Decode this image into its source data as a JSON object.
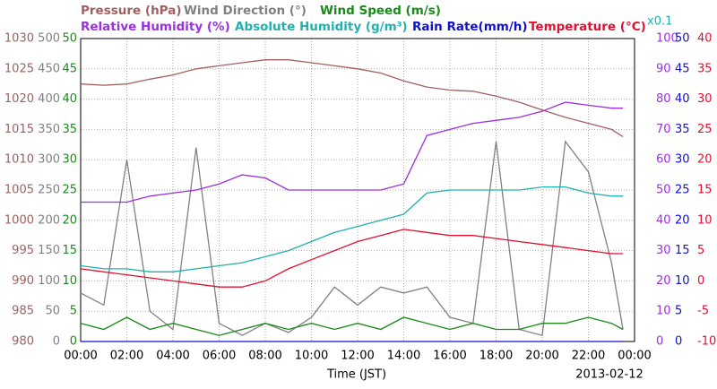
{
  "chart_data": {
    "type": "line",
    "x_label": "Time (JST)",
    "date": "2013-02-12",
    "scale_note": "x0.1",
    "xlim": [
      0,
      24
    ],
    "xticks": [
      {
        "value": 0,
        "label": "00:00"
      },
      {
        "value": 2,
        "label": "02:00"
      },
      {
        "value": 4,
        "label": "04:00"
      },
      {
        "value": 6,
        "label": "06:00"
      },
      {
        "value": 8,
        "label": "08:00"
      },
      {
        "value": 10,
        "label": "10:00"
      },
      {
        "value": 12,
        "label": "12:00"
      },
      {
        "value": 14,
        "label": "14:00"
      },
      {
        "value": 16,
        "label": "16:00"
      },
      {
        "value": 18,
        "label": "18:00"
      },
      {
        "value": 20,
        "label": "20:00"
      },
      {
        "value": 22,
        "label": "22:00"
      },
      {
        "value": 24,
        "label": "00:00"
      }
    ],
    "grid": true,
    "x": [
      0,
      1,
      2,
      3,
      4,
      5,
      6,
      7,
      8,
      9,
      10,
      11,
      12,
      13,
      14,
      15,
      16,
      17,
      18,
      19,
      20,
      21,
      22,
      23,
      23.5
    ],
    "series": [
      {
        "name": "Pressure (hPa)",
        "color": "#a0605f",
        "side": "left",
        "ylim": [
          980,
          1030
        ],
        "yticks": [
          980,
          985,
          990,
          995,
          1000,
          1005,
          1010,
          1015,
          1020,
          1025,
          1030
        ],
        "values": [
          1022.5,
          1022.3,
          1022.5,
          1023.3,
          1024,
          1025,
          1025.5,
          1026,
          1026.5,
          1026.5,
          1026,
          1025.5,
          1025,
          1024.3,
          1023,
          1022,
          1021.5,
          1021.3,
          1020.5,
          1019.5,
          1018.2,
          1017,
          1016,
          1015,
          1013.8
        ]
      },
      {
        "name": "Wind Direction (°)",
        "color": "#808080",
        "side": "left",
        "ylim": [
          0,
          500
        ],
        "yticks": [
          0,
          50,
          100,
          150,
          200,
          250,
          300,
          350,
          400,
          450,
          500
        ],
        "values": [
          80,
          60,
          300,
          50,
          20,
          320,
          30,
          10,
          30,
          15,
          40,
          90,
          60,
          90,
          80,
          90,
          40,
          30,
          330,
          20,
          10,
          330,
          280,
          130,
          20
        ]
      },
      {
        "name": "Wind Speed (m/s)",
        "color": "#1a8a1a",
        "side": "left",
        "ylim": [
          0,
          50
        ],
        "yticks": [
          0,
          5,
          10,
          15,
          20,
          25,
          30,
          35,
          40,
          45,
          50
        ],
        "values": [
          3,
          2,
          4,
          2,
          3,
          2,
          1,
          2,
          3,
          2,
          3,
          2,
          3,
          2,
          4,
          3,
          2,
          3,
          2,
          2,
          3,
          3,
          4,
          3,
          2
        ]
      },
      {
        "name": "Relative Humidity (%)",
        "color": "#9b30e0",
        "side": "right",
        "ylim": [
          0,
          100
        ],
        "yticks": [
          0,
          10,
          20,
          30,
          40,
          50,
          60,
          70,
          80,
          90,
          100
        ],
        "values": [
          46,
          46,
          46,
          48,
          49,
          50,
          52,
          55,
          54,
          50,
          50,
          50,
          50,
          50,
          52,
          68,
          70,
          72,
          73,
          74,
          76,
          79,
          78,
          77,
          77
        ]
      },
      {
        "name": "Absolute Humidity (g/m³)",
        "color": "#20b0b0",
        "side": "right",
        "ylim": [
          0,
          10
        ],
        "values": [
          2.5,
          2.4,
          2.4,
          2.3,
          2.3,
          2.4,
          2.5,
          2.6,
          2.8,
          3.0,
          3.3,
          3.6,
          3.8,
          4.0,
          4.2,
          4.9,
          5.0,
          5.0,
          5.0,
          5.0,
          5.1,
          5.1,
          4.9,
          4.8,
          4.8
        ]
      },
      {
        "name": "Rain Rate(mm/h)",
        "color": "#1010d0",
        "side": "right",
        "ylim": [
          0,
          50
        ],
        "yticks": [
          0,
          5,
          10,
          15,
          20,
          25,
          30,
          35,
          40,
          45,
          50
        ],
        "values": [
          0,
          0,
          0,
          0,
          0,
          0,
          0,
          0,
          0,
          0,
          0,
          0,
          0,
          0,
          0,
          0,
          0,
          0,
          0,
          0,
          0,
          0,
          0,
          0,
          0
        ]
      },
      {
        "name": "Temperature (°C)",
        "color": "#e01030",
        "side": "right",
        "ylim": [
          -10,
          40
        ],
        "yticks": [
          -10,
          -5,
          0,
          5,
          10,
          15,
          20,
          25,
          30,
          35,
          40
        ],
        "values": [
          2,
          1.5,
          1,
          0.5,
          0,
          -0.5,
          -1,
          -1,
          0,
          2,
          3.5,
          5,
          6.5,
          7.5,
          8.5,
          8,
          7.5,
          7.5,
          7,
          6.5,
          6,
          5.5,
          5,
          4.5,
          4.5
        ]
      }
    ]
  }
}
